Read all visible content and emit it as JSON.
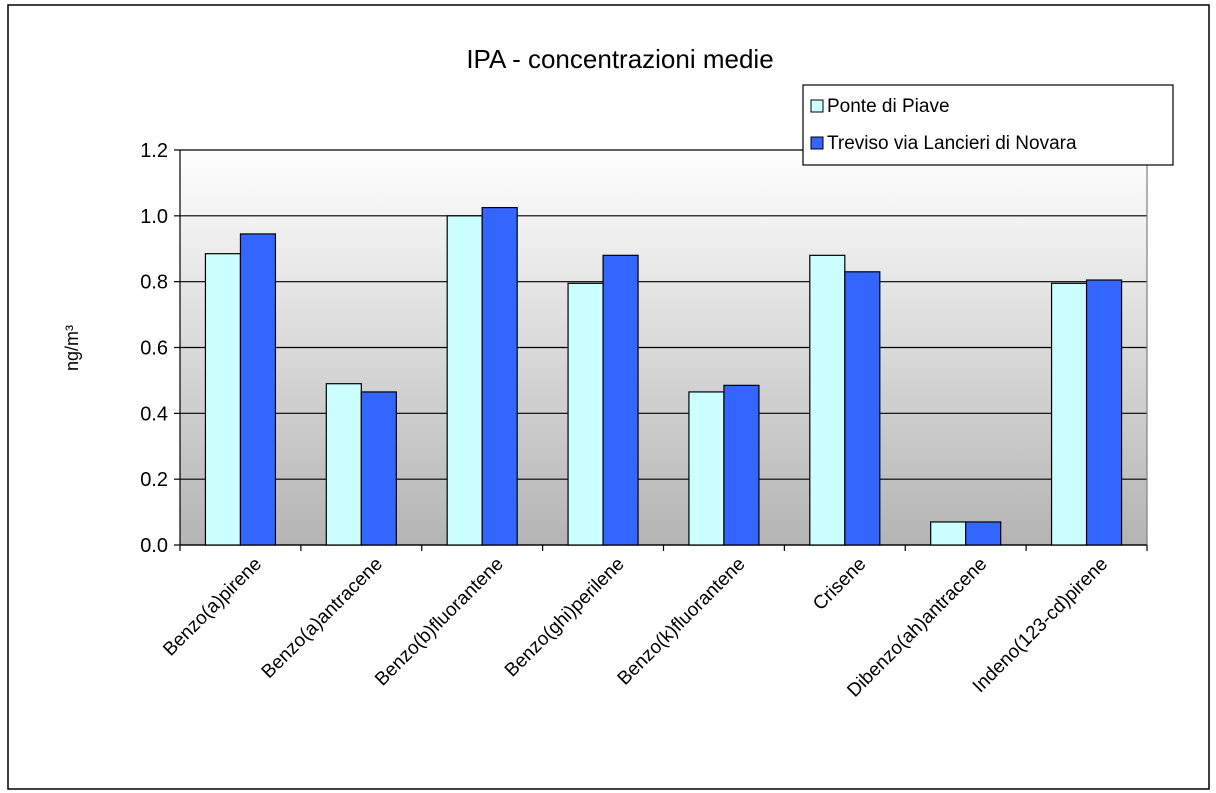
{
  "chart_data": {
    "type": "bar",
    "title": "IPA - concentrazioni medie",
    "y_label": "ng/m³",
    "categories": [
      "Benzo(a)pirene",
      "Benzo(a)antracene",
      "Benzo(b)fluorantene",
      "Benzo(ghi)perilene",
      "Benzo(k)fluorantene",
      "Crisene",
      "Dibenzo(ah)antracene",
      "Indeno(123-cd)pirene"
    ],
    "series": [
      {
        "name": "Ponte di Piave",
        "color": "#ccffff",
        "values": [
          0.885,
          0.49,
          1.0,
          0.795,
          0.465,
          0.88,
          0.07,
          0.795
        ]
      },
      {
        "name": "Treviso via Lancieri di Novara",
        "color": "#3366ff",
        "values": [
          0.945,
          0.465,
          1.025,
          0.88,
          0.485,
          0.83,
          0.07,
          0.805
        ]
      }
    ],
    "ylim": [
      0,
      1.2
    ],
    "yticks": [
      {
        "value": 0,
        "label": "0.0"
      },
      0.2,
      0.4,
      0.6,
      0.8,
      {
        "value": 1,
        "label": "1.0"
      },
      1.2
    ],
    "grid": true,
    "legend": "top-right"
  }
}
